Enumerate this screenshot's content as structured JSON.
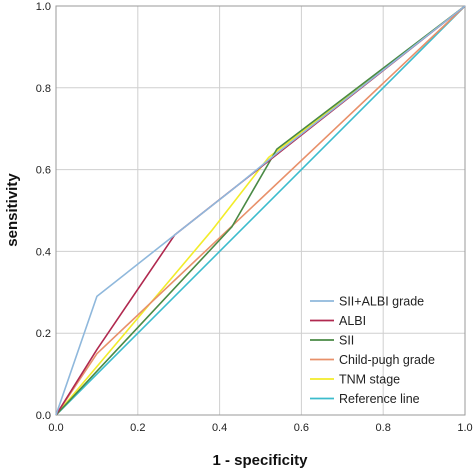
{
  "chart_data": {
    "type": "line",
    "xlabel": "1 - specificity",
    "ylabel": "sensitivity",
    "xlim": [
      0,
      1
    ],
    "ylim": [
      0,
      1
    ],
    "x_ticks": [
      "0.0",
      "0.2",
      "0.4",
      "0.6",
      "0.8",
      "1.0"
    ],
    "y_ticks": [
      "0.0",
      "0.2",
      "0.4",
      "0.6",
      "0.8",
      "1.0"
    ],
    "grid": true,
    "legend_position": "bottom-right",
    "series": [
      {
        "name": "SII+ALBI grade",
        "color": "#8fb8dc",
        "points": [
          [
            0,
            0
          ],
          [
            0.1,
            0.29
          ],
          [
            0.29,
            0.44
          ],
          [
            0.43,
            0.55
          ],
          [
            0.54,
            0.64
          ],
          [
            1,
            1
          ]
        ]
      },
      {
        "name": "ALBI",
        "color": "#b0294f",
        "points": [
          [
            0,
            0
          ],
          [
            0.1,
            0.16
          ],
          [
            0.29,
            0.44
          ],
          [
            1,
            1
          ]
        ]
      },
      {
        "name": "SII",
        "color": "#4a8a45",
        "points": [
          [
            0,
            0
          ],
          [
            0.43,
            0.46
          ],
          [
            0.54,
            0.65
          ],
          [
            1,
            1
          ]
        ]
      },
      {
        "name": "Child-pugh grade",
        "color": "#e8906a",
        "points": [
          [
            0,
            0
          ],
          [
            0.1,
            0.15
          ],
          [
            1,
            1
          ]
        ]
      },
      {
        "name": "TNM stage",
        "color": "#f2ec2a",
        "points": [
          [
            0,
            0
          ],
          [
            0.38,
            0.45
          ],
          [
            0.52,
            0.63
          ],
          [
            1,
            1
          ]
        ]
      },
      {
        "name": "Reference line",
        "color": "#3cbccc",
        "points": [
          [
            0,
            0
          ],
          [
            1,
            1
          ]
        ]
      }
    ]
  }
}
